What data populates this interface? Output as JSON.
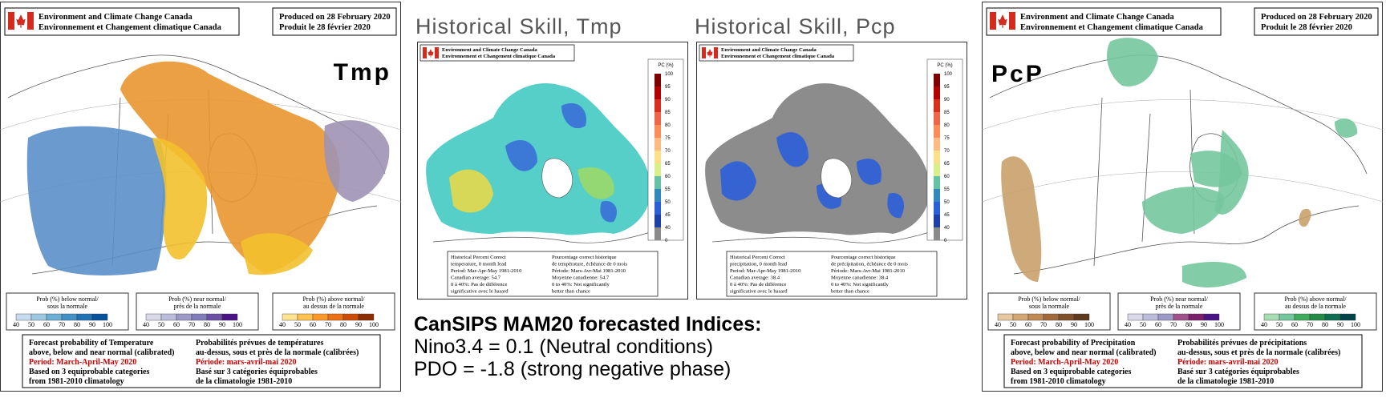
{
  "forecast_maps": [
    {
      "header": [
        "Environment and Climate Change Canada",
        "Environnement et Changement climatique Canada"
      ],
      "produced": [
        "Produced on 28 February 2020",
        "Produit le 28 février 2020"
      ],
      "label": "Tmp",
      "legend": [
        [
          "Prob (%) below normal/",
          "sous la normale"
        ],
        [
          "Prob (%) near normal/",
          "près de la normale"
        ],
        [
          "Prob (%) above normal/",
          "au dessus de la normale"
        ]
      ],
      "legend_ticks": [
        40,
        50,
        60,
        70,
        80,
        90,
        100
      ],
      "footer_en": [
        "Forecast probability of Temperature",
        "above, below and near normal (calibrated)",
        "Period: March-April-May 2020",
        "Based on 3 equiprobable categories",
        "from 1981-2010 climatology"
      ],
      "footer_fr": [
        "Probabilités prévues de températures",
        "au-dessus, sous et près de la normale (calibrées)",
        "Période: mars-avril-mai 2020",
        "Basé sur 3 catégories équiprobables",
        "de la climatologie 1981-2010"
      ]
    },
    {
      "header": [
        "Environment and Climate Change Canada",
        "Environnement et Changement climatique Canada"
      ],
      "produced": [
        "Produced on 28 February 2020",
        "Produit le 28 février 2020"
      ],
      "label": "PcP",
      "legend": [
        [
          "Prob (%) below normal/",
          "sous la normale"
        ],
        [
          "Prob (%) near normal/",
          "près de la normale"
        ],
        [
          "Prob (%) above normal/",
          "au dessus de la normale"
        ]
      ],
      "legend_ticks": [
        40,
        50,
        60,
        70,
        80,
        90,
        100
      ],
      "footer_en": [
        "Forecast probability of Precipitation",
        "above, below and near normal (calibrated)",
        "Period: March-April-May 2020",
        "Based on 3 equiprobable categories",
        "from 1981-2010 climatology"
      ],
      "footer_fr": [
        "Probabilités prévues de précipitations",
        "au-dessus, sous et près de la normale (calibrées)",
        "Période: mars-avril-mai 2020",
        "Basé sur 3 catégories équiprobables",
        "de la climatologie 1981-2010"
      ]
    }
  ],
  "skill_maps": [
    {
      "title": "Historical Skill, Tmp",
      "header": [
        "Environment and Climate Change Canada",
        "Environnement et Changement climatique Canada"
      ],
      "colorbar_label": "PC (%)",
      "colorbar_ticks": [
        100,
        95,
        90,
        85,
        80,
        75,
        70,
        65,
        60,
        55,
        50,
        45,
        40,
        0
      ],
      "footer_en": [
        "Historical Percent Correct",
        "temperature, 0 month lead",
        "Period: Mar-Apr-May 1981-2010",
        "Canadian average: 54.7",
        "0 à 40%: Pas de différence",
        "significative avec le hasard"
      ],
      "footer_fr": [
        "Pourcentage correct historique",
        "de température, échéance de 0 mois",
        "Période: Mars-Avr-Mai 1981-2010",
        "Moyenne canadienne: 54.7",
        "0 to 40%: Not significantly",
        "better than chance"
      ]
    },
    {
      "title": "Historical Skill, Pcp",
      "header": [
        "Environment and Climate Change Canada",
        "Environnement et Changement climatique Canada"
      ],
      "colorbar_label": "PC (%)",
      "colorbar_ticks": [
        100,
        95,
        90,
        85,
        80,
        75,
        70,
        65,
        60,
        55,
        50,
        45,
        40,
        0
      ],
      "footer_en": [
        "Historical Percent Correct",
        "precipitation, 0 month lead",
        "Period: Mar-Apr-May 1981-2010",
        "Canadian average: 38.4",
        "0 à 40%: Pas de différence",
        "significative avec le hasard"
      ],
      "footer_fr": [
        "Pourcentage correct historique",
        "de précipitation, échéance de 0 mois",
        "Période: Mars-Avr-Mai 1981-2010",
        "Moyenne canadienne: 38.4",
        "0 to 40%: Not significantly",
        "better than chance"
      ]
    }
  ],
  "indices": {
    "title": "CanSIPS MAM20 forecasted Indices:",
    "lines": [
      "Nino3.4 = 0.1 (Neutral conditions)",
      "PDO = -1.8  (strong negative phase)"
    ]
  }
}
